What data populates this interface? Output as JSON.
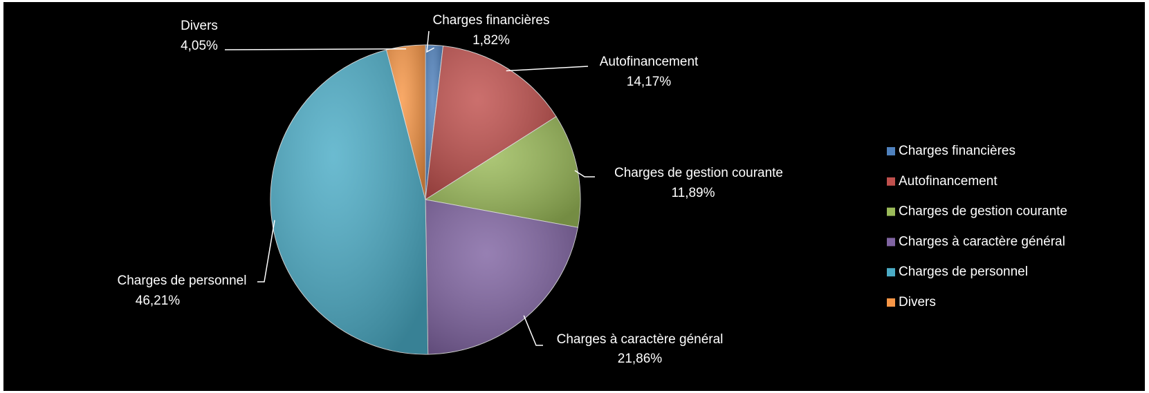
{
  "chart_data": {
    "type": "pie",
    "categories": [
      "Charges financières",
      "Autofinancement",
      "Charges de gestion courante",
      "Charges à caractère général",
      "Charges de personnel",
      "Divers"
    ],
    "values": [
      1.82,
      14.17,
      11.89,
      21.86,
      46.21,
      4.05
    ],
    "value_labels": [
      "1,82%",
      "14,17%",
      "11,89%",
      "21,86%",
      "46,21%",
      "4,05%"
    ],
    "colors": [
      "#4f81bd",
      "#c0504d",
      "#9bbb59",
      "#8064a2",
      "#4bacc6",
      "#f79646"
    ],
    "legend": "right"
  }
}
